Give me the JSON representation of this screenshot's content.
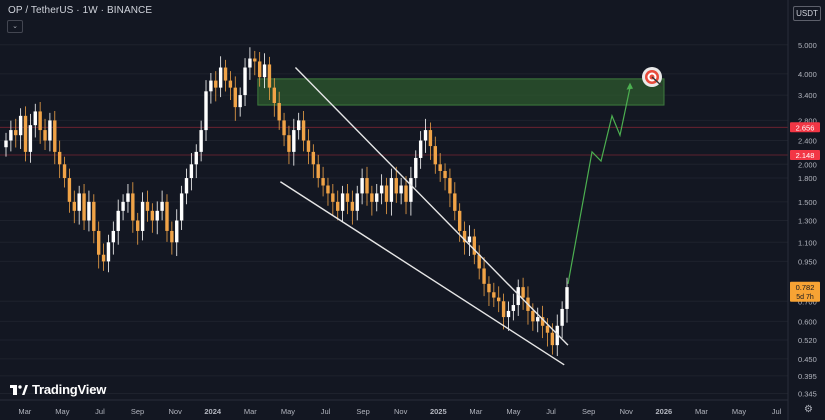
{
  "header": {
    "title": "OP / TetherUS · 1W · BINANCE",
    "collapse_icon": "chevron-down-icon",
    "currency": "USDT"
  },
  "brand": {
    "logo_text": "TradingView",
    "logo_icon": "tradingview-logo-icon"
  },
  "settings_icon": "gear-icon",
  "colors": {
    "background": "#131722",
    "candle_up": "#ffffff",
    "candle_down": "#f0a347",
    "zone_fill": "#2e5a2e",
    "projection": "#4caf50",
    "red_label": "#f23645",
    "orange_label": "#f7a334"
  },
  "chart_data": {
    "type": "candlestick",
    "y_scale": "log",
    "ylim": [
      0.36,
      5.6
    ],
    "y_ticks": [
      "5.000",
      "4.000",
      "3.400",
      "2.800",
      "2.400",
      "2.000",
      "1.800",
      "1.500",
      "1.300",
      "1.100",
      "0.950",
      "0.700",
      "0.600",
      "0.520",
      "0.450",
      "0.395",
      "0.345"
    ],
    "x_ticks": [
      "Mar",
      "May",
      "Jul",
      "Sep",
      "Nov",
      "2024",
      "Mar",
      "May",
      "Jul",
      "Sep",
      "Nov",
      "2025",
      "Mar",
      "May",
      "Jul",
      "Sep",
      "Nov",
      "2026",
      "Mar",
      "May",
      "Jul"
    ],
    "price_labels": [
      {
        "value": 2.656,
        "text": "2.656",
        "color": "#f23645"
      },
      {
        "value": 2.148,
        "text": "2.148",
        "color": "#f23645"
      },
      {
        "value": 0.782,
        "text": "0.782",
        "sub": "5d 7h",
        "color": "#f7a334"
      }
    ],
    "resistance_zone": {
      "x_start": "2024-03",
      "x_end": "2025-11",
      "y_low": 3.15,
      "y_high": 3.85
    },
    "falling_wedge": {
      "upper": [
        [
          "2024-06",
          4.2
        ],
        [
          "2025-07",
          0.5
        ]
      ],
      "lower": [
        [
          "2024-05",
          1.75
        ],
        [
          "2025-07",
          0.43
        ]
      ]
    },
    "projection": [
      0.8,
      2.2,
      2.05,
      2.9,
      2.5,
      3.6
    ],
    "target_icon": "target-icon",
    "series": [
      {
        "name": "",
        "closes": [
          2.4,
          2.6,
          2.5,
          2.9,
          2.2,
          2.7,
          3.0,
          2.6,
          2.4,
          2.8,
          2.2,
          2.0,
          1.8,
          1.5,
          1.4,
          1.6,
          1.3,
          1.5,
          1.2,
          1.0,
          0.95,
          1.1,
          1.2,
          1.4,
          1.5,
          1.6,
          1.3,
          1.2,
          1.5,
          1.4,
          1.3,
          1.4,
          1.5,
          1.2,
          1.1,
          1.3,
          1.6,
          1.8,
          2.0,
          2.2,
          2.6,
          3.5,
          3.8,
          3.6,
          4.2,
          3.8,
          3.6,
          3.1,
          3.4,
          4.2,
          4.5,
          4.4,
          3.9,
          4.3,
          3.6,
          3.2,
          2.8,
          2.5,
          2.2,
          2.6,
          2.8,
          2.4,
          2.2,
          2.0,
          1.8,
          1.7,
          1.6,
          1.5,
          1.4,
          1.6,
          1.5,
          1.4,
          1.6,
          1.8,
          1.6,
          1.5,
          1.6,
          1.7,
          1.5,
          1.8,
          1.6,
          1.7,
          1.5,
          1.8,
          2.1,
          2.4,
          2.6,
          2.3,
          2.0,
          1.9,
          1.8,
          1.6,
          1.4,
          1.2,
          1.1,
          1.15,
          1.0,
          0.9,
          0.8,
          0.75,
          0.72,
          0.7,
          0.62,
          0.65,
          0.68,
          0.78,
          0.72,
          0.65,
          0.6,
          0.62,
          0.58,
          0.55,
          0.5,
          0.58,
          0.66,
          0.78
        ]
      }
    ]
  }
}
